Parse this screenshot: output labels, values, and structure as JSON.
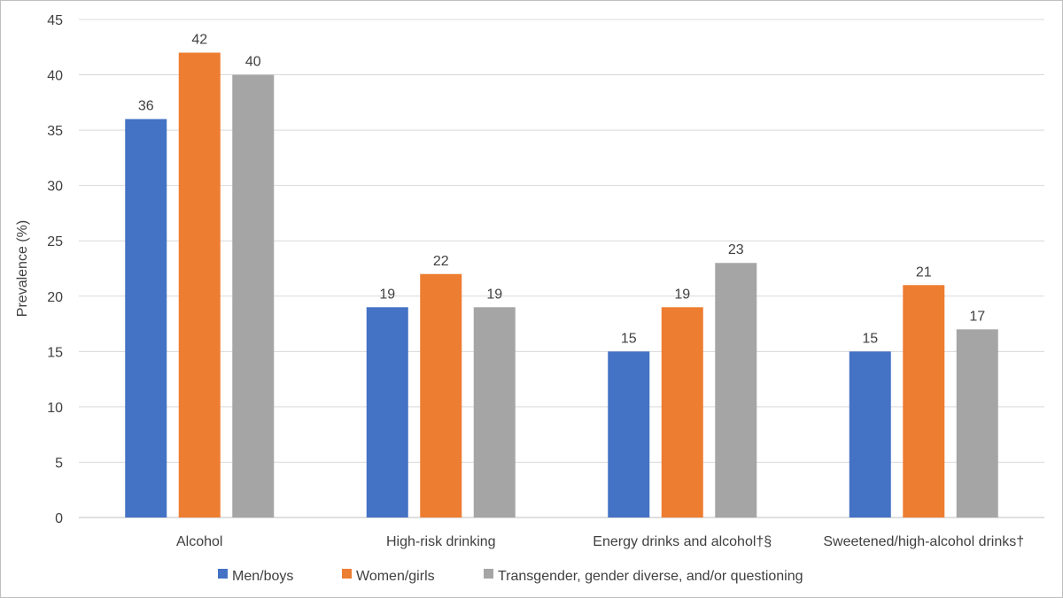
{
  "chart_data": {
    "type": "bar",
    "title": "",
    "xlabel": "",
    "ylabel": "Prevalence (%)",
    "ylim": [
      0,
      45
    ],
    "yticks": [
      0,
      5,
      10,
      15,
      20,
      25,
      30,
      35,
      40,
      45
    ],
    "grid": true,
    "legend_position": "bottom",
    "categories": [
      "Alcohol",
      "High-risk drinking",
      "Energy drinks and alcohol†§",
      "Sweetened/high-alcohol drinks†"
    ],
    "series": [
      {
        "name": "Men/boys",
        "color": "#4472c4",
        "values": [
          36,
          19,
          15,
          15
        ]
      },
      {
        "name": "Women/girls",
        "color": "#ed7d31",
        "values": [
          42,
          22,
          19,
          21
        ]
      },
      {
        "name": "Transgender, gender diverse, and/or questioning",
        "color": "#a5a5a5",
        "values": [
          40,
          19,
          23,
          17
        ]
      }
    ]
  }
}
